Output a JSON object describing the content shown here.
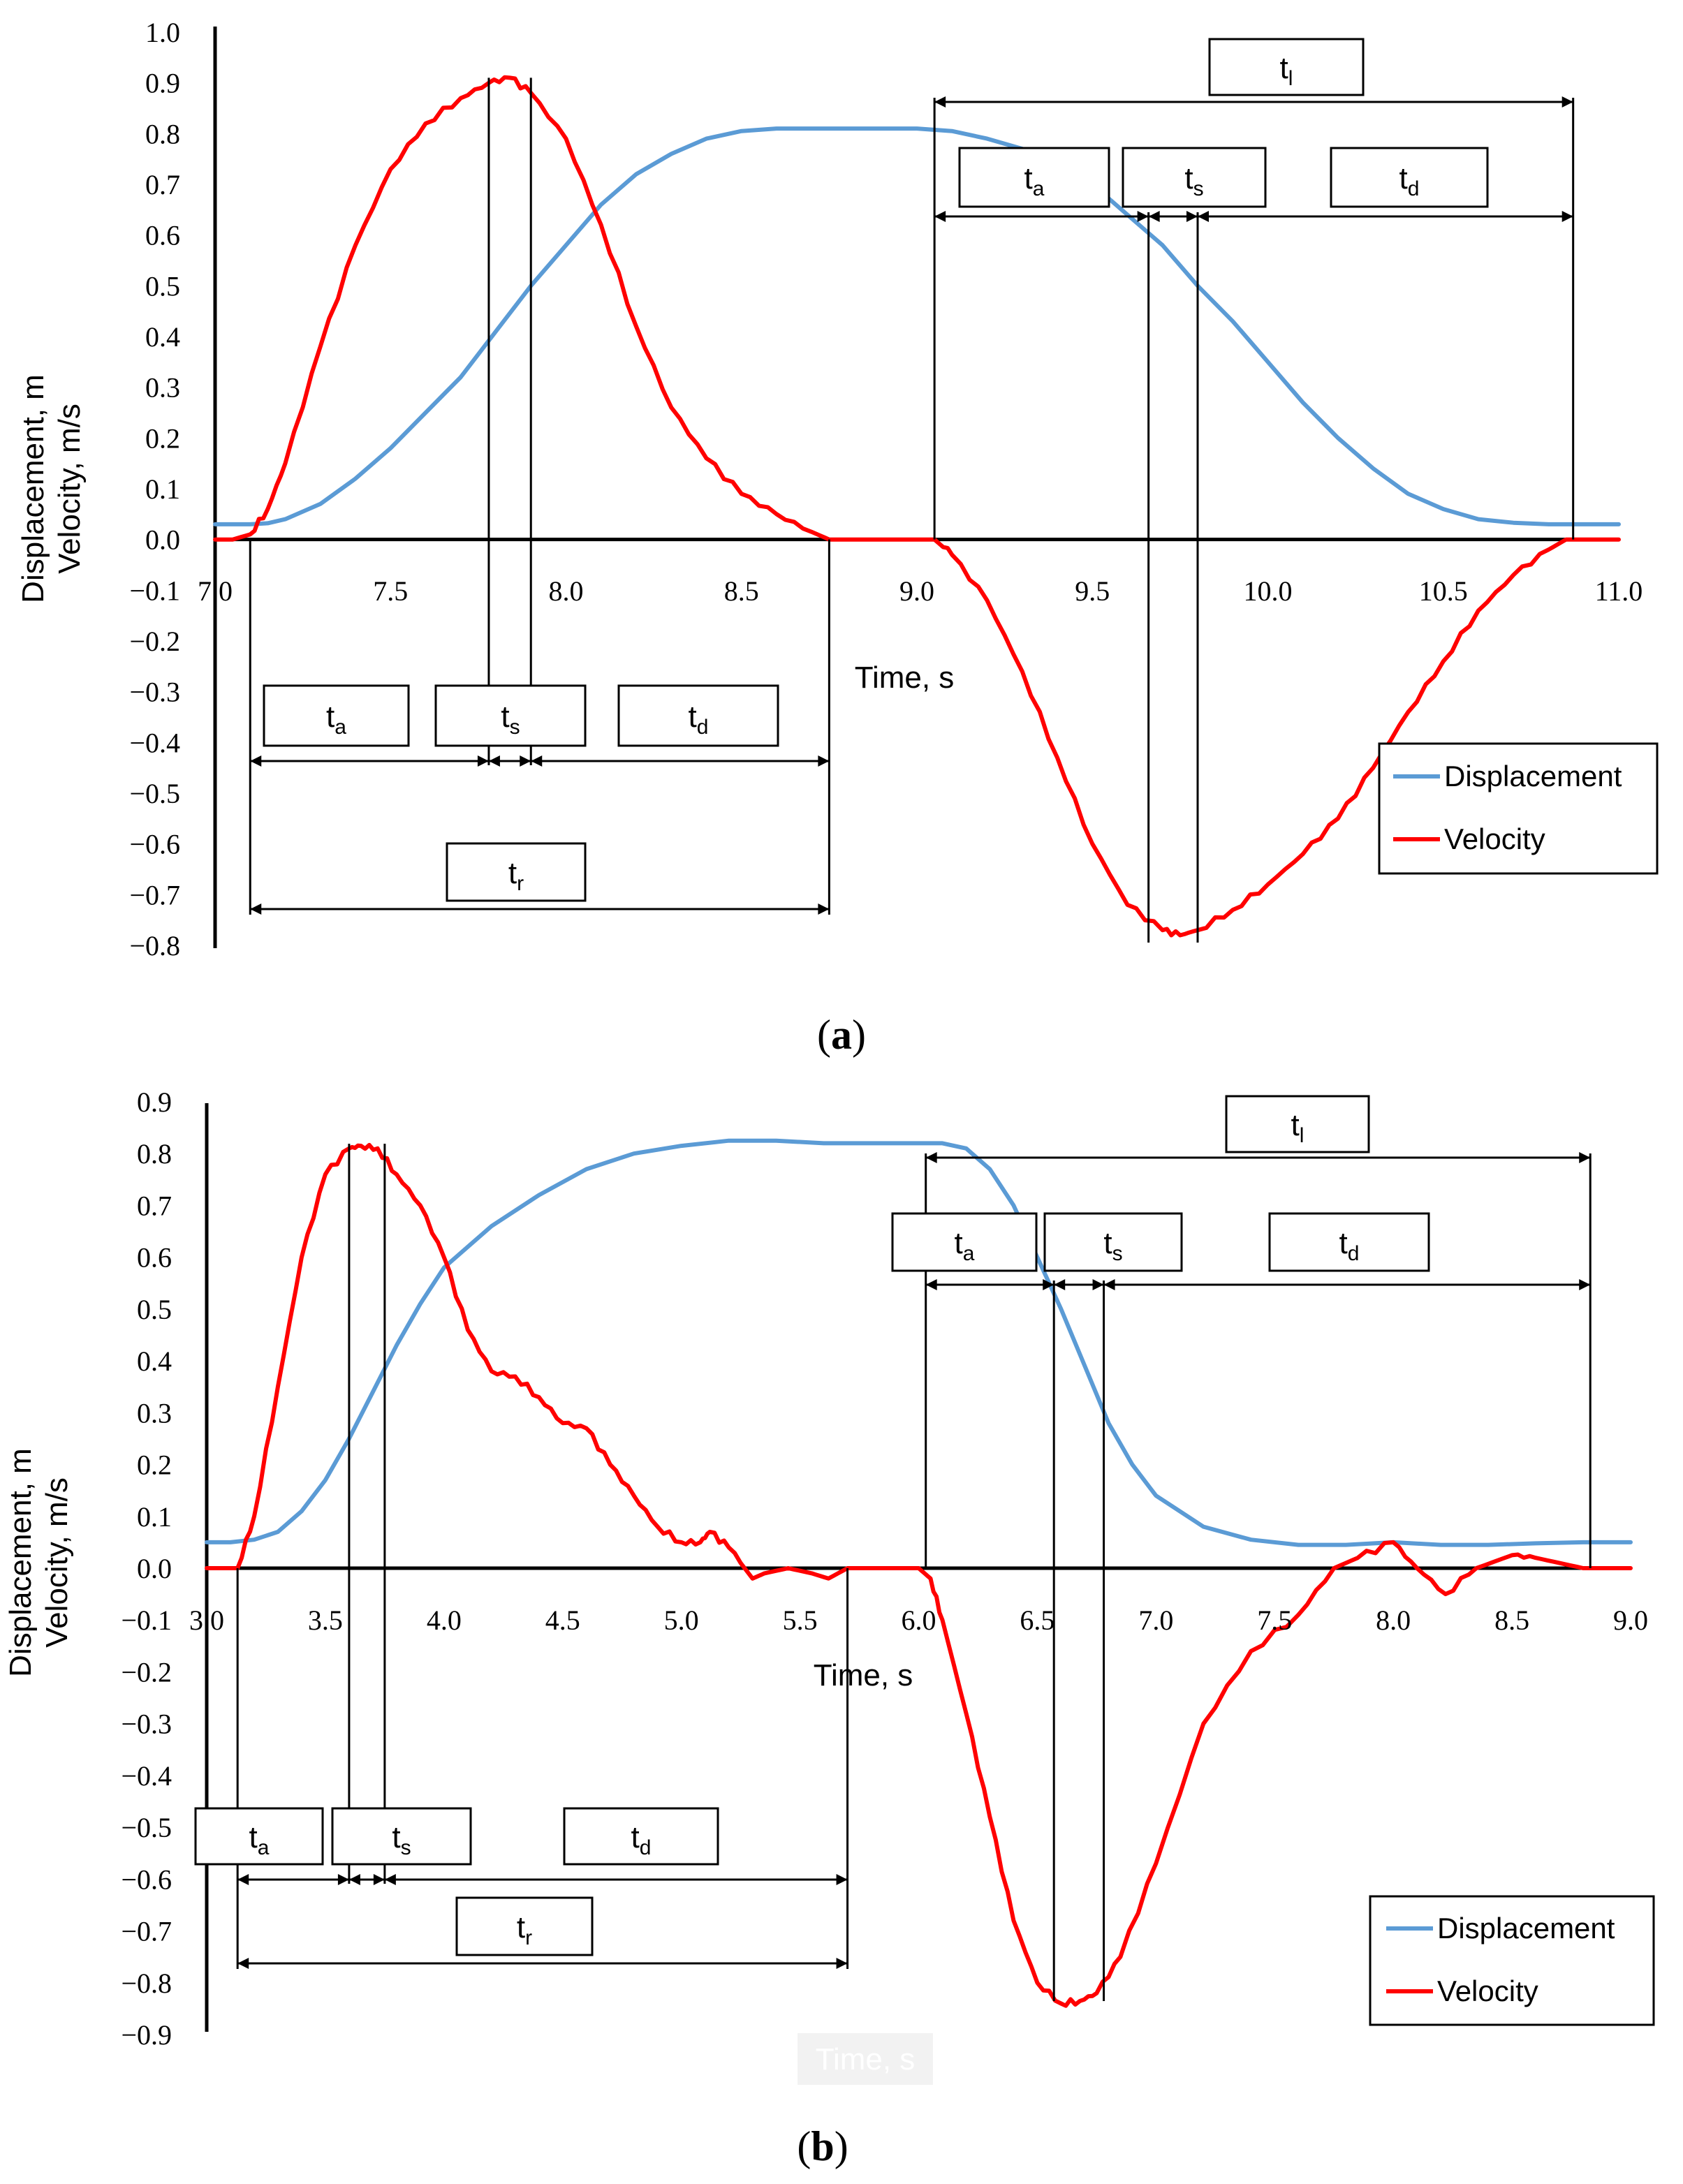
{
  "chart_data": [
    {
      "panel": "a",
      "type": "line",
      "caption": "(a)",
      "caption_letter": "a",
      "xlabel": "Time, s",
      "ylabel_line1": "Displacement, m",
      "ylabel_line2": "Velocity, m/s",
      "xlim": [
        7.0,
        11.0
      ],
      "ylim": [
        -0.8,
        1.0
      ],
      "xticks": [
        7.0,
        7.5,
        8.0,
        8.5,
        9.0,
        9.5,
        10.0,
        10.5,
        11.0
      ],
      "xtick_labels": [
        "7.0",
        "7.5",
        "8.0",
        "8.5",
        "9.0",
        "9.5",
        "10.0",
        "10.5",
        "11.0"
      ],
      "yticks": [
        1.0,
        0.9,
        0.8,
        0.7,
        0.6,
        0.5,
        0.4,
        0.3,
        0.2,
        0.1,
        0.0,
        -0.1,
        -0.2,
        -0.3,
        -0.4,
        -0.5,
        -0.6,
        -0.7,
        -0.8
      ],
      "ytick_labels": [
        "1.0",
        "0.9",
        "0.8",
        "0.7",
        "0.6",
        "0.5",
        "0.4",
        "0.3",
        "0.2",
        "0.1",
        "0.0",
        "−0.1",
        "−0.2",
        "−0.3",
        "−0.4",
        "−0.5",
        "−0.6",
        "−0.7",
        "−0.8"
      ],
      "legend": [
        "Displacement",
        "Velocity"
      ],
      "legend_position": "bottom-right",
      "series": [
        {
          "name": "Displacement",
          "color": "#5B9BD5",
          "x": [
            7.0,
            7.05,
            7.1,
            7.15,
            7.2,
            7.3,
            7.4,
            7.5,
            7.6,
            7.7,
            7.8,
            7.9,
            8.0,
            8.1,
            8.2,
            8.3,
            8.4,
            8.5,
            8.6,
            8.7,
            8.8,
            8.9,
            9.0,
            9.1,
            9.2,
            9.3,
            9.4,
            9.5,
            9.6,
            9.7,
            9.8,
            9.9,
            10.0,
            10.1,
            10.2,
            10.3,
            10.4,
            10.5,
            10.6,
            10.7,
            10.8,
            10.9,
            11.0
          ],
          "y": [
            0.03,
            0.03,
            0.03,
            0.032,
            0.04,
            0.07,
            0.12,
            0.18,
            0.25,
            0.32,
            0.41,
            0.5,
            0.58,
            0.66,
            0.72,
            0.76,
            0.79,
            0.805,
            0.81,
            0.81,
            0.81,
            0.81,
            0.81,
            0.805,
            0.79,
            0.77,
            0.74,
            0.7,
            0.64,
            0.58,
            0.5,
            0.43,
            0.35,
            0.27,
            0.2,
            0.14,
            0.09,
            0.06,
            0.04,
            0.033,
            0.03,
            0.03,
            0.03
          ]
        },
        {
          "name": "Velocity",
          "color": "#FF0000",
          "x": [
            7.0,
            7.05,
            7.1,
            7.15,
            7.2,
            7.3,
            7.4,
            7.5,
            7.6,
            7.7,
            7.78,
            7.84,
            7.9,
            8.0,
            8.1,
            8.2,
            8.3,
            8.4,
            8.5,
            8.6,
            8.7,
            8.75,
            9.0,
            9.05,
            9.1,
            9.2,
            9.3,
            9.4,
            9.5,
            9.6,
            9.7,
            9.75,
            9.8,
            9.9,
            10.0,
            10.1,
            10.2,
            10.3,
            10.4,
            10.5,
            10.6,
            10.7,
            10.8,
            10.85,
            11.0
          ],
          "y": [
            0.0,
            0.0,
            0.01,
            0.06,
            0.15,
            0.38,
            0.58,
            0.73,
            0.82,
            0.87,
            0.9,
            0.91,
            0.88,
            0.79,
            0.62,
            0.42,
            0.26,
            0.16,
            0.09,
            0.05,
            0.015,
            0.0,
            0.0,
            0.0,
            -0.03,
            -0.12,
            -0.26,
            -0.43,
            -0.6,
            -0.72,
            -0.77,
            -0.78,
            -0.77,
            -0.73,
            -0.68,
            -0.62,
            -0.55,
            -0.45,
            -0.34,
            -0.24,
            -0.14,
            -0.07,
            -0.02,
            0.0,
            0.0
          ]
        }
      ],
      "annotations": {
        "rise": {
          "start": 7.1,
          "a_end": 7.78,
          "s_end": 7.9,
          "end": 8.75,
          "label_ta_main": "t",
          "label_ta_sub": "a",
          "label_ts_main": "t",
          "label_ts_sub": "s",
          "label_td_main": "t",
          "label_td_sub": "d",
          "label_total_main": "t",
          "label_total_sub": "r"
        },
        "lower": {
          "start": 9.05,
          "a_end": 9.66,
          "s_end": 9.8,
          "end": 10.87,
          "label_ta_main": "t",
          "label_ta_sub": "a",
          "label_ts_main": "t",
          "label_ts_sub": "s",
          "label_td_main": "t",
          "label_td_sub": "d",
          "label_total_main": "t",
          "label_total_sub": "l"
        }
      }
    },
    {
      "panel": "b",
      "type": "line",
      "caption": "(b)",
      "caption_letter": "b",
      "xlabel": "Time, s",
      "ylabel_line1": "Displacement, m",
      "ylabel_line2": "Velocity, m/s",
      "ghost_label": "Time, s",
      "xlim": [
        3.0,
        9.0
      ],
      "ylim": [
        -0.9,
        0.9
      ],
      "xticks": [
        3.0,
        3.5,
        4.0,
        4.5,
        5.0,
        5.5,
        6.0,
        6.5,
        7.0,
        7.5,
        8.0,
        8.5,
        9.0
      ],
      "xtick_labels": [
        "3.0",
        "3.5",
        "4.0",
        "4.5",
        "5.0",
        "5.5",
        "6.0",
        "6.5",
        "7.0",
        "7.5",
        "8.0",
        "8.5",
        "9.0"
      ],
      "yticks": [
        0.9,
        0.8,
        0.7,
        0.6,
        0.5,
        0.4,
        0.3,
        0.2,
        0.1,
        0.0,
        -0.1,
        -0.2,
        -0.3,
        -0.4,
        -0.5,
        -0.6,
        -0.7,
        -0.8,
        -0.9
      ],
      "ytick_labels": [
        "0.9",
        "0.8",
        "0.7",
        "0.6",
        "0.5",
        "0.4",
        "0.3",
        "0.2",
        "0.1",
        "0.0",
        "−0.1",
        "−0.2",
        "−0.3",
        "−0.4",
        "−0.5",
        "−0.6",
        "−0.7",
        "−0.8",
        "−0.9"
      ],
      "legend": [
        "Displacement",
        "Velocity"
      ],
      "legend_position": "bottom-right",
      "series": [
        {
          "name": "Displacement",
          "color": "#5B9BD5",
          "x": [
            3.0,
            3.1,
            3.2,
            3.3,
            3.4,
            3.5,
            3.6,
            3.7,
            3.8,
            3.9,
            4.0,
            4.2,
            4.4,
            4.6,
            4.8,
            5.0,
            5.2,
            5.4,
            5.6,
            5.8,
            6.0,
            6.1,
            6.2,
            6.3,
            6.4,
            6.5,
            6.6,
            6.7,
            6.8,
            6.9,
            7.0,
            7.2,
            7.4,
            7.6,
            7.8,
            8.0,
            8.2,
            8.4,
            8.6,
            8.8,
            9.0
          ],
          "y": [
            0.05,
            0.05,
            0.055,
            0.07,
            0.11,
            0.17,
            0.25,
            0.34,
            0.43,
            0.51,
            0.58,
            0.66,
            0.72,
            0.77,
            0.8,
            0.815,
            0.825,
            0.825,
            0.82,
            0.82,
            0.82,
            0.82,
            0.81,
            0.77,
            0.7,
            0.6,
            0.5,
            0.39,
            0.28,
            0.2,
            0.14,
            0.08,
            0.055,
            0.045,
            0.045,
            0.05,
            0.045,
            0.045,
            0.048,
            0.05,
            0.05
          ],
          "smooth": true
        },
        {
          "name": "Velocity",
          "color": "#FF0000",
          "x": [
            3.0,
            3.13,
            3.2,
            3.3,
            3.4,
            3.5,
            3.6,
            3.65,
            3.72,
            3.8,
            3.9,
            4.0,
            4.1,
            4.2,
            4.3,
            4.4,
            4.5,
            4.6,
            4.7,
            4.8,
            4.9,
            5.0,
            5.08,
            5.12,
            5.2,
            5.3,
            5.35,
            5.45,
            5.55,
            5.62,
            5.7,
            5.8,
            6.0,
            6.05,
            6.1,
            6.2,
            6.3,
            6.4,
            6.5,
            6.6,
            6.68,
            6.75,
            6.85,
            7.0,
            7.2,
            7.4,
            7.6,
            7.75,
            7.85,
            8.0,
            8.1,
            8.22,
            8.35,
            8.5,
            8.6,
            8.7,
            8.8,
            9.0
          ],
          "y": [
            0.0,
            0.0,
            0.1,
            0.35,
            0.6,
            0.76,
            0.81,
            0.815,
            0.81,
            0.76,
            0.7,
            0.6,
            0.46,
            0.38,
            0.37,
            0.33,
            0.28,
            0.27,
            0.2,
            0.14,
            0.08,
            0.05,
            0.05,
            0.07,
            0.04,
            -0.02,
            -0.01,
            0.0,
            -0.01,
            -0.02,
            0.0,
            0.0,
            0.0,
            -0.02,
            -0.1,
            -0.28,
            -0.48,
            -0.68,
            -0.8,
            -0.84,
            -0.835,
            -0.82,
            -0.75,
            -0.57,
            -0.3,
            -0.16,
            -0.09,
            0.0,
            0.02,
            0.05,
            0.0,
            -0.05,
            0.0,
            0.025,
            0.02,
            0.01,
            0.0,
            0.0
          ]
        }
      ],
      "annotations": {
        "rise": {
          "start": 3.13,
          "a_end": 3.6,
          "s_end": 3.75,
          "end": 5.7,
          "label_ta_main": "t",
          "label_ta_sub": "a",
          "label_ts_main": "t",
          "label_ts_sub": "s",
          "label_td_main": "t",
          "label_td_sub": "d",
          "label_total_main": "t",
          "label_total_sub": "r"
        },
        "lower": {
          "start": 6.03,
          "a_end": 6.57,
          "s_end": 6.78,
          "end": 8.83,
          "label_ta_main": "t",
          "label_ta_sub": "a",
          "label_ts_main": "t",
          "label_ts_sub": "s",
          "label_td_main": "t",
          "label_td_sub": "d",
          "label_total_main": "t",
          "label_total_sub": "l"
        }
      }
    }
  ]
}
